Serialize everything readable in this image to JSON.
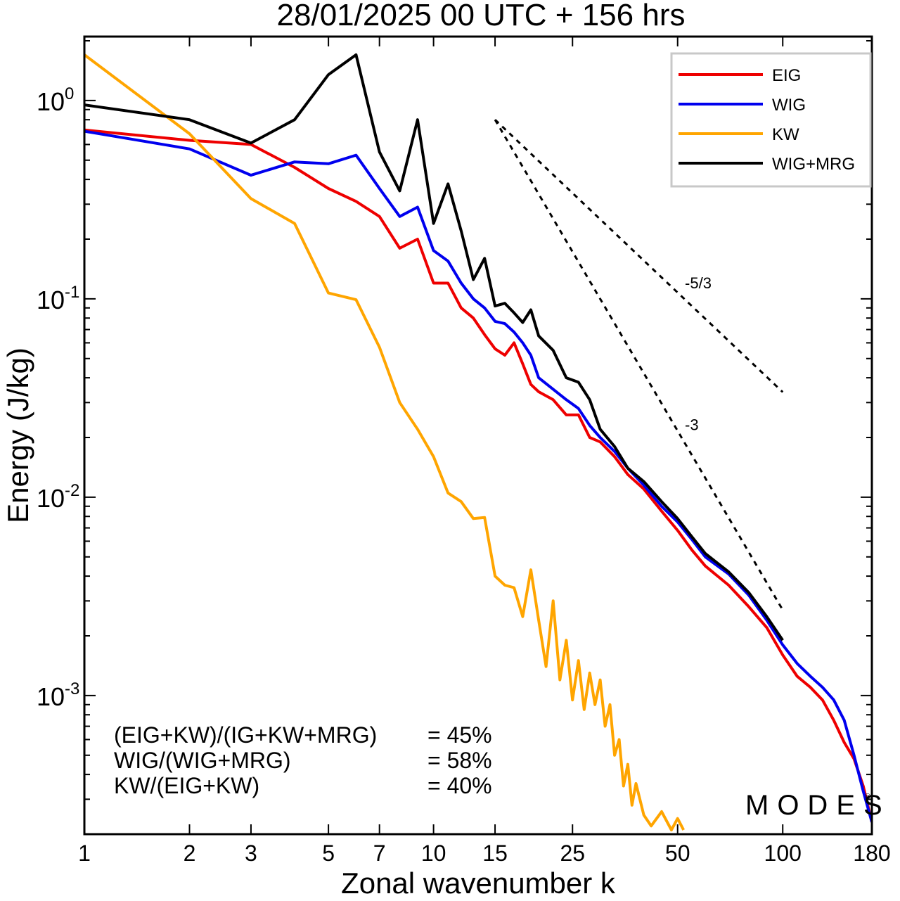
{
  "chart_data": {
    "type": "line",
    "title": "28/01/2025  00 UTC  + 156 hrs",
    "xlabel": "Zonal wavenumber k",
    "ylabel": "Energy (J/kg)",
    "xscale": "log",
    "yscale": "log",
    "xlim": [
      1,
      180
    ],
    "ylim": [
      0.0002,
      2.1
    ],
    "xticks": [
      1,
      2,
      3,
      5,
      7,
      10,
      15,
      25,
      50,
      100,
      180
    ],
    "xtick_labels": [
      "1",
      "2",
      "3",
      "5",
      "7",
      "10",
      "15",
      "25",
      "50",
      "100",
      "180"
    ],
    "ytick_labels": [
      {
        "value": 1,
        "base": "10",
        "exp": "0"
      },
      {
        "value": 0.1,
        "base": "10",
        "exp": "-1"
      },
      {
        "value": 0.01,
        "base": "10",
        "exp": "-2"
      },
      {
        "value": 0.001,
        "base": "10",
        "exp": "-3"
      }
    ],
    "legend_position": "top-right",
    "series": [
      {
        "name": "EIG",
        "color": "#ee0000",
        "x": [
          1,
          2,
          3,
          4,
          5,
          6,
          7,
          8,
          9,
          10,
          11,
          12,
          13,
          14,
          15,
          16,
          17,
          18,
          19,
          20,
          22,
          24,
          26,
          28,
          30,
          33,
          36,
          40,
          45,
          50,
          55,
          60,
          70,
          80,
          90,
          100,
          110,
          120,
          130,
          140,
          150,
          160,
          170,
          180
        ],
        "y": [
          0.71,
          0.63,
          0.6,
          0.46,
          0.36,
          0.31,
          0.26,
          0.18,
          0.2,
          0.12,
          0.12,
          0.09,
          0.08,
          0.066,
          0.056,
          0.052,
          0.06,
          0.047,
          0.037,
          0.034,
          0.031,
          0.026,
          0.026,
          0.02,
          0.019,
          0.016,
          0.013,
          0.011,
          0.0085,
          0.0068,
          0.0054,
          0.0045,
          0.0036,
          0.0028,
          0.0022,
          0.0016,
          0.00125,
          0.0011,
          0.00095,
          0.00075,
          0.00058,
          0.00048,
          0.00035,
          0.00023
        ]
      },
      {
        "name": "WIG",
        "color": "#0000ee",
        "x": [
          1,
          2,
          3,
          4,
          5,
          6,
          7,
          8,
          9,
          10,
          11,
          12,
          13,
          14,
          15,
          16,
          17,
          18,
          19,
          20,
          22,
          24,
          26,
          28,
          30,
          33,
          36,
          40,
          45,
          50,
          55,
          60,
          70,
          80,
          90,
          100,
          110,
          120,
          130,
          140,
          150,
          160,
          170,
          180
        ],
        "y": [
          0.7,
          0.57,
          0.42,
          0.49,
          0.48,
          0.53,
          0.36,
          0.26,
          0.29,
          0.175,
          0.155,
          0.12,
          0.1,
          0.09,
          0.077,
          0.075,
          0.068,
          0.06,
          0.052,
          0.04,
          0.035,
          0.031,
          0.028,
          0.023,
          0.02,
          0.017,
          0.014,
          0.0115,
          0.009,
          0.0075,
          0.0061,
          0.005,
          0.0041,
          0.0032,
          0.0024,
          0.0018,
          0.00145,
          0.00125,
          0.0011,
          0.00095,
          0.00075,
          0.0005,
          0.00033,
          0.00023
        ]
      },
      {
        "name": "KW",
        "color": "#ffa500",
        "x": [
          1,
          2,
          3,
          4,
          5,
          6,
          7,
          8,
          9,
          10,
          11,
          12,
          13,
          14,
          15,
          16,
          17,
          18,
          19,
          20,
          21,
          22,
          23,
          24,
          25,
          26,
          27,
          28,
          29,
          30,
          31,
          32,
          33,
          34,
          35,
          36,
          37,
          38,
          40,
          42,
          45,
          48,
          50,
          52
        ],
        "y": [
          1.7,
          0.68,
          0.32,
          0.24,
          0.107,
          0.099,
          0.057,
          0.03,
          0.022,
          0.016,
          0.0105,
          0.0095,
          0.0078,
          0.0079,
          0.004,
          0.0036,
          0.0035,
          0.0025,
          0.0043,
          0.0024,
          0.0014,
          0.003,
          0.0012,
          0.0019,
          0.00095,
          0.0015,
          0.00085,
          0.0013,
          0.0009,
          0.0012,
          0.0007,
          0.0009,
          0.0005,
          0.0006,
          0.00035,
          0.00045,
          0.00028,
          0.00036,
          0.00025,
          0.00022,
          0.00026,
          0.00021,
          0.00024,
          0.00021
        ]
      },
      {
        "name": "WIG+MRG",
        "color": "#000000",
        "x": [
          1,
          2,
          3,
          4,
          5,
          6,
          7,
          8,
          9,
          10,
          11,
          12,
          13,
          14,
          15,
          16,
          17,
          18,
          19,
          20,
          22,
          24,
          26,
          28,
          30,
          33,
          36,
          40,
          45,
          50,
          55,
          60,
          70,
          80,
          90,
          100
        ],
        "y": [
          0.95,
          0.8,
          0.61,
          0.8,
          1.35,
          1.7,
          0.55,
          0.35,
          0.8,
          0.24,
          0.38,
          0.22,
          0.125,
          0.16,
          0.092,
          0.095,
          0.085,
          0.076,
          0.088,
          0.065,
          0.055,
          0.04,
          0.038,
          0.031,
          0.022,
          0.018,
          0.014,
          0.012,
          0.0095,
          0.0078,
          0.0063,
          0.0052,
          0.0042,
          0.0033,
          0.0025,
          0.0019
        ]
      }
    ],
    "reference_lines": [
      {
        "label": "-5/3",
        "k0": 15,
        "y0": 0.8,
        "k1": 100,
        "slope": -1.6667
      },
      {
        "label": "-3",
        "k0": 15,
        "y0": 0.8,
        "k1": 100,
        "slope": -3
      }
    ],
    "annotations": [
      {
        "label": "(EIG+KW)/(IG+KW+MRG)",
        "value": "= 45%"
      },
      {
        "label": "WIG/(WIG+MRG)",
        "value": "= 58%"
      },
      {
        "label": "KW/(EIG+KW)",
        "value": "= 40%"
      }
    ],
    "watermark": "MODES",
    "watermark_mark": "©"
  }
}
